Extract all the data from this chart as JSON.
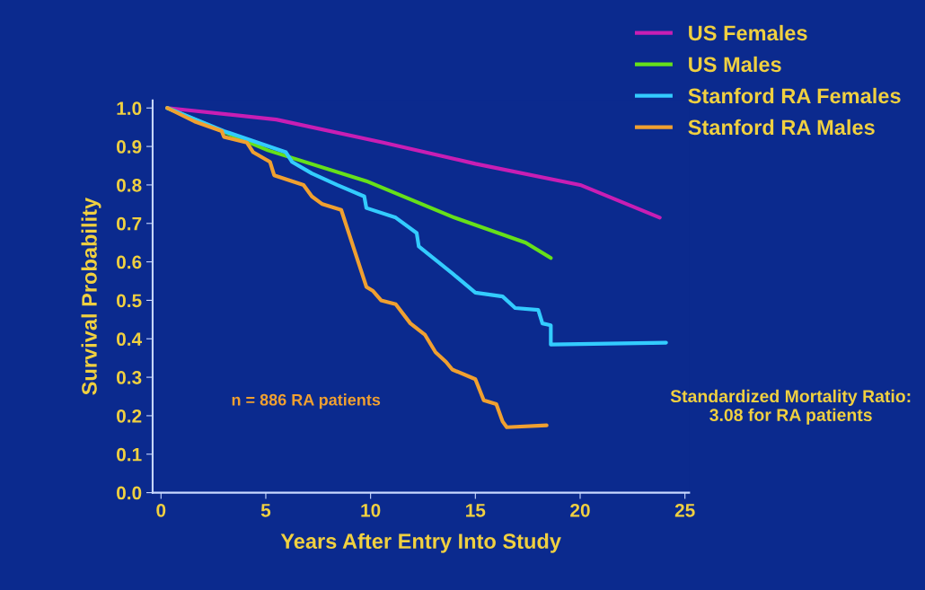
{
  "chart_data": {
    "type": "line",
    "xlabel": "Years After Entry Into Study",
    "ylabel": "Survival Probability",
    "xlim": [
      -0.4,
      25.2
    ],
    "ylim": [
      0,
      1.02
    ],
    "xticks": [
      0,
      5,
      10,
      15,
      20,
      25
    ],
    "yticks": [
      {
        "value": 0,
        "label": "0.0"
      },
      0.1,
      0.2,
      0.3,
      0.4,
      0.5,
      0.6,
      0.7,
      0.8,
      0.9,
      {
        "value": 1,
        "label": "1.0"
      }
    ],
    "grid": false,
    "legend": "top right",
    "marker": "none",
    "line_style": "solid",
    "annotations": [
      "n = 886 RA patients",
      "Standardized Mortality Ratio:\n3.08 for RA patients"
    ],
    "series": [
      {
        "name": "US Females",
        "color": "#c81eb4",
        "x": [
          0.3,
          5.5,
          10.6,
          15.0,
          20.0,
          23.8
        ],
        "values": [
          1.0,
          0.97,
          0.91,
          0.855,
          0.8,
          0.715
        ]
      },
      {
        "name": "US Males",
        "color": "#66e01a",
        "x": [
          0.3,
          5.1,
          9.8,
          14.0,
          17.4,
          18.6
        ],
        "values": [
          1.0,
          0.89,
          0.81,
          0.715,
          0.65,
          0.61
        ]
      },
      {
        "name": "Stanford RA Females",
        "color": "#33ccff",
        "x": [
          0.3,
          3.0,
          5.96,
          6.25,
          7.2,
          8.4,
          9.7,
          9.8,
          11.2,
          12.2,
          12.3,
          13.1,
          13.9,
          15.0,
          16.3,
          16.9,
          18.0,
          18.2,
          18.6,
          18.6,
          24.1
        ],
        "values": [
          1.0,
          0.94,
          0.885,
          0.86,
          0.83,
          0.8,
          0.77,
          0.74,
          0.715,
          0.675,
          0.64,
          0.605,
          0.57,
          0.52,
          0.51,
          0.48,
          0.475,
          0.44,
          0.435,
          0.385,
          0.39
        ]
      },
      {
        "name": "Stanford RA Males",
        "color": "#f0a030",
        "x": [
          0.3,
          1.6,
          2.9,
          3.0,
          4.1,
          4.4,
          5.2,
          5.4,
          6.8,
          7.2,
          7.7,
          8.6,
          9.8,
          10.1,
          10.5,
          11.2,
          11.9,
          12.6,
          13.1,
          13.6,
          13.9,
          15.0,
          15.4,
          16.0,
          16.3,
          16.5,
          18.4
        ],
        "values": [
          1.0,
          0.965,
          0.94,
          0.925,
          0.91,
          0.885,
          0.86,
          0.825,
          0.8,
          0.77,
          0.75,
          0.735,
          0.535,
          0.525,
          0.5,
          0.49,
          0.44,
          0.41,
          0.365,
          0.34,
          0.32,
          0.295,
          0.24,
          0.23,
          0.185,
          0.17,
          0.175
        ]
      }
    ]
  }
}
